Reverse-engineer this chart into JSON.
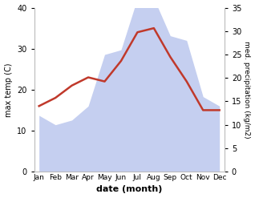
{
  "months": [
    "Jan",
    "Feb",
    "Mar",
    "Apr",
    "May",
    "Jun",
    "Jul",
    "Aug",
    "Sep",
    "Oct",
    "Nov",
    "Dec"
  ],
  "temperature": [
    16,
    18,
    21,
    23,
    22,
    27,
    34,
    35,
    28,
    22,
    15,
    15
  ],
  "precipitation": [
    12,
    10,
    11,
    14,
    25,
    26,
    37,
    37,
    29,
    28,
    16,
    14
  ],
  "temp_color": "#c0392b",
  "precip_fill_color": "#c5cff0",
  "precip_edge_color": "#b0bce8",
  "temp_ylim": [
    0,
    40
  ],
  "precip_ylim": [
    0,
    35
  ],
  "temp_yticks": [
    0,
    10,
    20,
    30,
    40
  ],
  "precip_yticks": [
    0,
    5,
    10,
    15,
    20,
    25,
    30,
    35
  ],
  "xlabel": "date (month)",
  "ylabel_left": "max temp (C)",
  "ylabel_right": "med. precipitation (kg/m2)",
  "background_color": "#ffffff",
  "line_width": 1.8
}
